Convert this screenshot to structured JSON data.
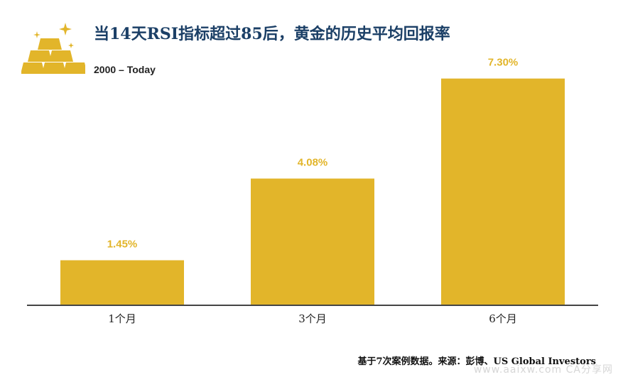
{
  "header": {
    "title": "当14天RSI指标超过85后，黄金的历史平均回报率",
    "subtitle": "2000 – Today"
  },
  "logo_icon": "gold-bars-icon",
  "chart_data": {
    "type": "bar",
    "categories": [
      "1个月",
      "3个月",
      "6个月"
    ],
    "values": [
      1.45,
      4.08,
      7.3
    ],
    "value_labels": [
      "1.45%",
      "4.08%",
      "7.30%"
    ],
    "unit": "%",
    "ylim": [
      0,
      8
    ],
    "grid": false,
    "legend": "none",
    "bar_color": "#e2b52a",
    "label_color": "#e2b52a",
    "axis_color": "#444444"
  },
  "footer": {
    "source": "基于7次案例数据。来源：彭博、US Global Investors",
    "watermark": "www.aaixw.com  CA分享网"
  }
}
